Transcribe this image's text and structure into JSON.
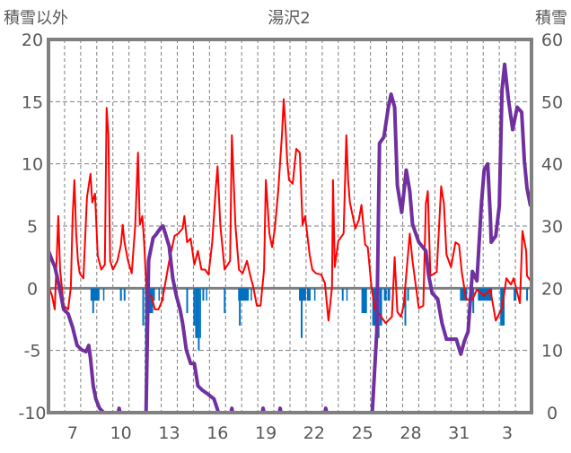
{
  "chart_data": {
    "type": "line",
    "title": "湯沢2",
    "ylabel_left": "積雪以外",
    "ylabel_right": "積雪",
    "ylim_left": [
      -10,
      20
    ],
    "ylim_right": [
      0,
      60
    ],
    "yticks_left": [
      "20",
      "15",
      "10",
      "5",
      "0",
      "-5",
      "-10"
    ],
    "yticks_right": [
      "60",
      "50",
      "40",
      "30",
      "20",
      "10",
      "0"
    ],
    "x_unit": "days since start of day 6",
    "xlim": [
      0,
      30
    ],
    "xtick_labels": [
      {
        "label": "7",
        "x": 1.5
      },
      {
        "label": "10",
        "x": 4.5
      },
      {
        "label": "13",
        "x": 7.5
      },
      {
        "label": "16",
        "x": 10.5
      },
      {
        "label": "19",
        "x": 13.5
      },
      {
        "label": "22",
        "x": 16.5
      },
      {
        "label": "25",
        "x": 19.5
      },
      {
        "label": "28",
        "x": 22.5
      },
      {
        "label": "31",
        "x": 25.5
      },
      {
        "label": "3",
        "x": 28.5
      }
    ],
    "grid": "dashed, daily vertical lines and every 5 units horizontal",
    "colors": {
      "red_series": "#ff0000",
      "snow_depth": "#7030a0",
      "bars": "#0070c0",
      "axis": "#808080"
    },
    "series": [
      {
        "name": "red_line",
        "axis": "left",
        "points": [
          [
            0,
            0.2
          ],
          [
            0.22,
            -0.6
          ],
          [
            0.39,
            -1.7
          ],
          [
            0.61,
            5.8
          ],
          [
            0.72,
            1.5
          ],
          [
            0.94,
            -1.4
          ],
          [
            1.22,
            -1.7
          ],
          [
            1.39,
            0.1
          ],
          [
            1.5,
            5.8
          ],
          [
            1.61,
            8.7
          ],
          [
            1.72,
            4.4
          ],
          [
            1.83,
            2.2
          ],
          [
            1.94,
            1.2
          ],
          [
            2.17,
            0.8
          ],
          [
            2.39,
            7.3
          ],
          [
            2.61,
            9.2
          ],
          [
            2.72,
            6.9
          ],
          [
            2.89,
            7.6
          ],
          [
            3.06,
            2.6
          ],
          [
            3.28,
            1.5
          ],
          [
            3.5,
            1.9
          ],
          [
            3.61,
            14.5
          ],
          [
            3.72,
            12.3
          ],
          [
            3.83,
            2.2
          ],
          [
            4.0,
            1.5
          ],
          [
            4.28,
            2.2
          ],
          [
            4.5,
            3.5
          ],
          [
            4.61,
            5.1
          ],
          [
            4.72,
            3.7
          ],
          [
            4.94,
            2.2
          ],
          [
            5.17,
            1.2
          ],
          [
            5.39,
            5.1
          ],
          [
            5.56,
            10.9
          ],
          [
            5.67,
            5.1
          ],
          [
            5.83,
            5.8
          ],
          [
            5.94,
            3.7
          ],
          [
            6.11,
            -0.6
          ],
          [
            6.39,
            -0.6
          ],
          [
            6.61,
            -1.7
          ],
          [
            6.83,
            -1.7
          ],
          [
            7.06,
            -1.0
          ],
          [
            7.28,
            0.6
          ],
          [
            7.5,
            2.2
          ],
          [
            7.83,
            4.2
          ],
          [
            8.06,
            4.4
          ],
          [
            8.33,
            4.8
          ],
          [
            8.44,
            5.8
          ],
          [
            8.61,
            3.7
          ],
          [
            8.83,
            4.0
          ],
          [
            9.06,
            1.9
          ],
          [
            9.28,
            3.0
          ],
          [
            9.5,
            1.5
          ],
          [
            9.72,
            1.5
          ],
          [
            9.94,
            1.1
          ],
          [
            10.17,
            3.7
          ],
          [
            10.39,
            8.0
          ],
          [
            10.5,
            9.8
          ],
          [
            10.67,
            5.1
          ],
          [
            10.94,
            1.5
          ],
          [
            11.28,
            2.2
          ],
          [
            11.39,
            12.3
          ],
          [
            11.5,
            8.7
          ],
          [
            11.61,
            5.1
          ],
          [
            11.83,
            1.5
          ],
          [
            12.06,
            1.2
          ],
          [
            12.33,
            2.2
          ],
          [
            12.5,
            1.2
          ],
          [
            12.72,
            0.1
          ],
          [
            12.94,
            -1.4
          ],
          [
            13.17,
            -1.4
          ],
          [
            13.39,
            1.5
          ],
          [
            13.5,
            8.7
          ],
          [
            13.61,
            6.6
          ],
          [
            13.72,
            4.4
          ],
          [
            13.89,
            3.3
          ],
          [
            14.06,
            4.8
          ],
          [
            14.28,
            8.0
          ],
          [
            14.39,
            10.2
          ],
          [
            14.5,
            12.3
          ],
          [
            14.61,
            15.2
          ],
          [
            14.72,
            13.0
          ],
          [
            14.83,
            10.2
          ],
          [
            14.94,
            8.7
          ],
          [
            15.17,
            8.4
          ],
          [
            15.39,
            11.2
          ],
          [
            15.61,
            10.9
          ],
          [
            15.78,
            5.1
          ],
          [
            15.94,
            5.8
          ],
          [
            16.22,
            2.7
          ],
          [
            16.39,
            1.5
          ],
          [
            16.61,
            1.2
          ],
          [
            16.94,
            1.1
          ],
          [
            17.17,
            0.4
          ],
          [
            17.39,
            -2.6
          ],
          [
            17.61,
            0.1
          ],
          [
            17.67,
            8.7
          ],
          [
            17.78,
            1.7
          ],
          [
            18.0,
            3.8
          ],
          [
            18.33,
            4.4
          ],
          [
            18.5,
            12.3
          ],
          [
            18.61,
            8.7
          ],
          [
            18.72,
            6.9
          ],
          [
            19.06,
            4.8
          ],
          [
            19.28,
            5.5
          ],
          [
            19.44,
            6.7
          ],
          [
            19.67,
            3.5
          ],
          [
            19.83,
            3.3
          ],
          [
            20.06,
            0.1
          ],
          [
            20.28,
            -1.7
          ],
          [
            20.56,
            -2.1
          ],
          [
            20.94,
            -2.8
          ],
          [
            21.33,
            -2.3
          ],
          [
            21.5,
            2.5
          ],
          [
            21.67,
            -1.9
          ],
          [
            21.89,
            -2.3
          ],
          [
            22.06,
            -1.4
          ],
          [
            22.44,
            4.4
          ],
          [
            22.61,
            2.2
          ],
          [
            23.0,
            -1.6
          ],
          [
            23.28,
            -1.4
          ],
          [
            23.44,
            6.8
          ],
          [
            23.56,
            7.8
          ],
          [
            23.72,
            1.0
          ],
          [
            24.11,
            1.3
          ],
          [
            24.39,
            8.2
          ],
          [
            24.56,
            6.8
          ],
          [
            24.72,
            2.7
          ],
          [
            25.0,
            1.7
          ],
          [
            25.28,
            3.7
          ],
          [
            25.5,
            3.5
          ],
          [
            25.67,
            1.3
          ],
          [
            25.94,
            -0.9
          ],
          [
            26.33,
            -0.9
          ],
          [
            26.61,
            -0.1
          ],
          [
            27.06,
            -0.6
          ],
          [
            27.44,
            -0.1
          ],
          [
            27.78,
            -2.6
          ],
          [
            28.17,
            -1.6
          ],
          [
            28.44,
            0.8
          ],
          [
            28.72,
            0.3
          ],
          [
            28.89,
            0.8
          ],
          [
            29.28,
            -1.2
          ],
          [
            29.44,
            4.6
          ],
          [
            29.67,
            3.0
          ],
          [
            29.72,
            1.0
          ],
          [
            29.94,
            0.6
          ]
        ]
      },
      {
        "name": "snow_depth",
        "axis": "right",
        "points": [
          [
            0,
            26.0
          ],
          [
            0.22,
            24.5
          ],
          [
            0.39,
            23.5
          ],
          [
            0.56,
            21.6
          ],
          [
            0.78,
            18.8
          ],
          [
            0.94,
            16.6
          ],
          [
            1.22,
            15.9
          ],
          [
            1.5,
            13.7
          ],
          [
            1.78,
            10.8
          ],
          [
            2.06,
            10.1
          ],
          [
            2.33,
            9.8
          ],
          [
            2.5,
            10.8
          ],
          [
            2.61,
            8.7
          ],
          [
            2.78,
            4.3
          ],
          [
            2.94,
            2.2
          ],
          [
            3.17,
            0.7
          ],
          [
            3.44,
            0
          ],
          [
            4.33,
            0
          ],
          [
            4.39,
            0.7
          ],
          [
            4.44,
            0
          ],
          [
            6.06,
            0
          ],
          [
            6.22,
            24.5
          ],
          [
            6.5,
            28.1
          ],
          [
            6.67,
            28.6
          ],
          [
            6.94,
            29.6
          ],
          [
            7.11,
            30.0
          ],
          [
            7.28,
            28.6
          ],
          [
            7.5,
            26.7
          ],
          [
            7.72,
            21.6
          ],
          [
            7.94,
            18.8
          ],
          [
            8.17,
            16.6
          ],
          [
            8.33,
            14.4
          ],
          [
            8.56,
            10.1
          ],
          [
            8.83,
            7.9
          ],
          [
            9.06,
            7.9
          ],
          [
            9.28,
            4.3
          ],
          [
            9.56,
            3.6
          ],
          [
            9.94,
            2.9
          ],
          [
            10.28,
            2.2
          ],
          [
            10.56,
            0
          ],
          [
            11.33,
            0
          ],
          [
            11.39,
            0.7
          ],
          [
            11.44,
            0
          ],
          [
            13.28,
            0
          ],
          [
            13.33,
            0.7
          ],
          [
            13.39,
            0
          ],
          [
            14.33,
            0
          ],
          [
            14.39,
            0.7
          ],
          [
            14.44,
            0
          ],
          [
            17.17,
            0
          ],
          [
            17.22,
            0.7
          ],
          [
            17.28,
            0
          ],
          [
            20.11,
            0
          ],
          [
            20.39,
            13.0
          ],
          [
            20.56,
            43.3
          ],
          [
            20.83,
            44.3
          ],
          [
            21.11,
            49.1
          ],
          [
            21.28,
            51.2
          ],
          [
            21.5,
            49.1
          ],
          [
            21.67,
            36.5
          ],
          [
            21.94,
            32.2
          ],
          [
            22.22,
            39.0
          ],
          [
            22.44,
            35.6
          ],
          [
            22.61,
            30.3
          ],
          [
            23.0,
            27.4
          ],
          [
            23.44,
            26.0
          ],
          [
            23.61,
            22.1
          ],
          [
            23.83,
            19.2
          ],
          [
            24.17,
            18.3
          ],
          [
            24.44,
            14.4
          ],
          [
            24.72,
            11.8
          ],
          [
            25.33,
            11.8
          ],
          [
            25.61,
            9.4
          ],
          [
            25.83,
            11.5
          ],
          [
            26.06,
            13.0
          ],
          [
            26.33,
            22.7
          ],
          [
            26.61,
            21.2
          ],
          [
            26.89,
            33.6
          ],
          [
            27.06,
            39.0
          ],
          [
            27.28,
            40.0
          ],
          [
            27.44,
            31.7
          ],
          [
            27.5,
            27.4
          ],
          [
            27.78,
            28.4
          ],
          [
            28.0,
            33.2
          ],
          [
            28.17,
            51.9
          ],
          [
            28.33,
            56.0
          ],
          [
            28.56,
            50.5
          ],
          [
            28.83,
            45.5
          ],
          [
            29.11,
            49.1
          ],
          [
            29.39,
            48.3
          ],
          [
            29.56,
            40.4
          ],
          [
            29.72,
            36.1
          ],
          [
            29.94,
            33.2
          ]
        ]
      },
      {
        "name": "blue_bars",
        "axis": "left",
        "type": "bar",
        "bars": [
          [
            2.61,
            3.17,
            -1
          ],
          [
            2.72,
            2.83,
            -2
          ],
          [
            3.39,
            3.44,
            -1
          ],
          [
            4.44,
            4.56,
            -1
          ],
          [
            4.67,
            4.78,
            -1
          ],
          [
            5.83,
            5.94,
            -3
          ],
          [
            6.0,
            6.06,
            -8
          ],
          [
            6.11,
            6.17,
            -4
          ],
          [
            6.22,
            6.5,
            -2
          ],
          [
            6.5,
            6.61,
            -1
          ],
          [
            6.83,
            6.89,
            -1
          ],
          [
            7.06,
            7.17,
            -1
          ],
          [
            8.56,
            8.67,
            -2
          ],
          [
            9.0,
            9.11,
            -3
          ],
          [
            9.11,
            9.28,
            -4
          ],
          [
            9.28,
            9.39,
            -5
          ],
          [
            9.39,
            9.44,
            -4
          ],
          [
            9.56,
            9.67,
            -1
          ],
          [
            9.78,
            9.83,
            -1
          ],
          [
            10.89,
            11.0,
            -2
          ],
          [
            11.78,
            12.44,
            -1
          ],
          [
            11.83,
            11.94,
            -3
          ],
          [
            12.56,
            12.61,
            -1
          ],
          [
            15.56,
            16.0,
            -1
          ],
          [
            15.67,
            15.78,
            -4
          ],
          [
            16.06,
            16.28,
            -1
          ],
          [
            16.5,
            16.56,
            -1
          ],
          [
            18.22,
            18.33,
            -1
          ],
          [
            18.5,
            18.56,
            -1
          ],
          [
            19.44,
            19.78,
            -2
          ],
          [
            20.11,
            20.5,
            -3
          ],
          [
            20.44,
            20.56,
            -4
          ],
          [
            20.56,
            20.72,
            -3
          ],
          [
            20.83,
            21.0,
            -1
          ],
          [
            21.06,
            21.22,
            -1
          ],
          [
            22.11,
            22.22,
            -3
          ],
          [
            22.28,
            22.39,
            -1
          ],
          [
            25.56,
            26.0,
            -1
          ],
          [
            26.33,
            26.44,
            -2
          ],
          [
            26.67,
            27.56,
            -1
          ],
          [
            28.06,
            28.33,
            -3
          ],
          [
            28.89,
            29.06,
            -1
          ],
          [
            29.67,
            29.78,
            -1
          ]
        ]
      }
    ]
  }
}
